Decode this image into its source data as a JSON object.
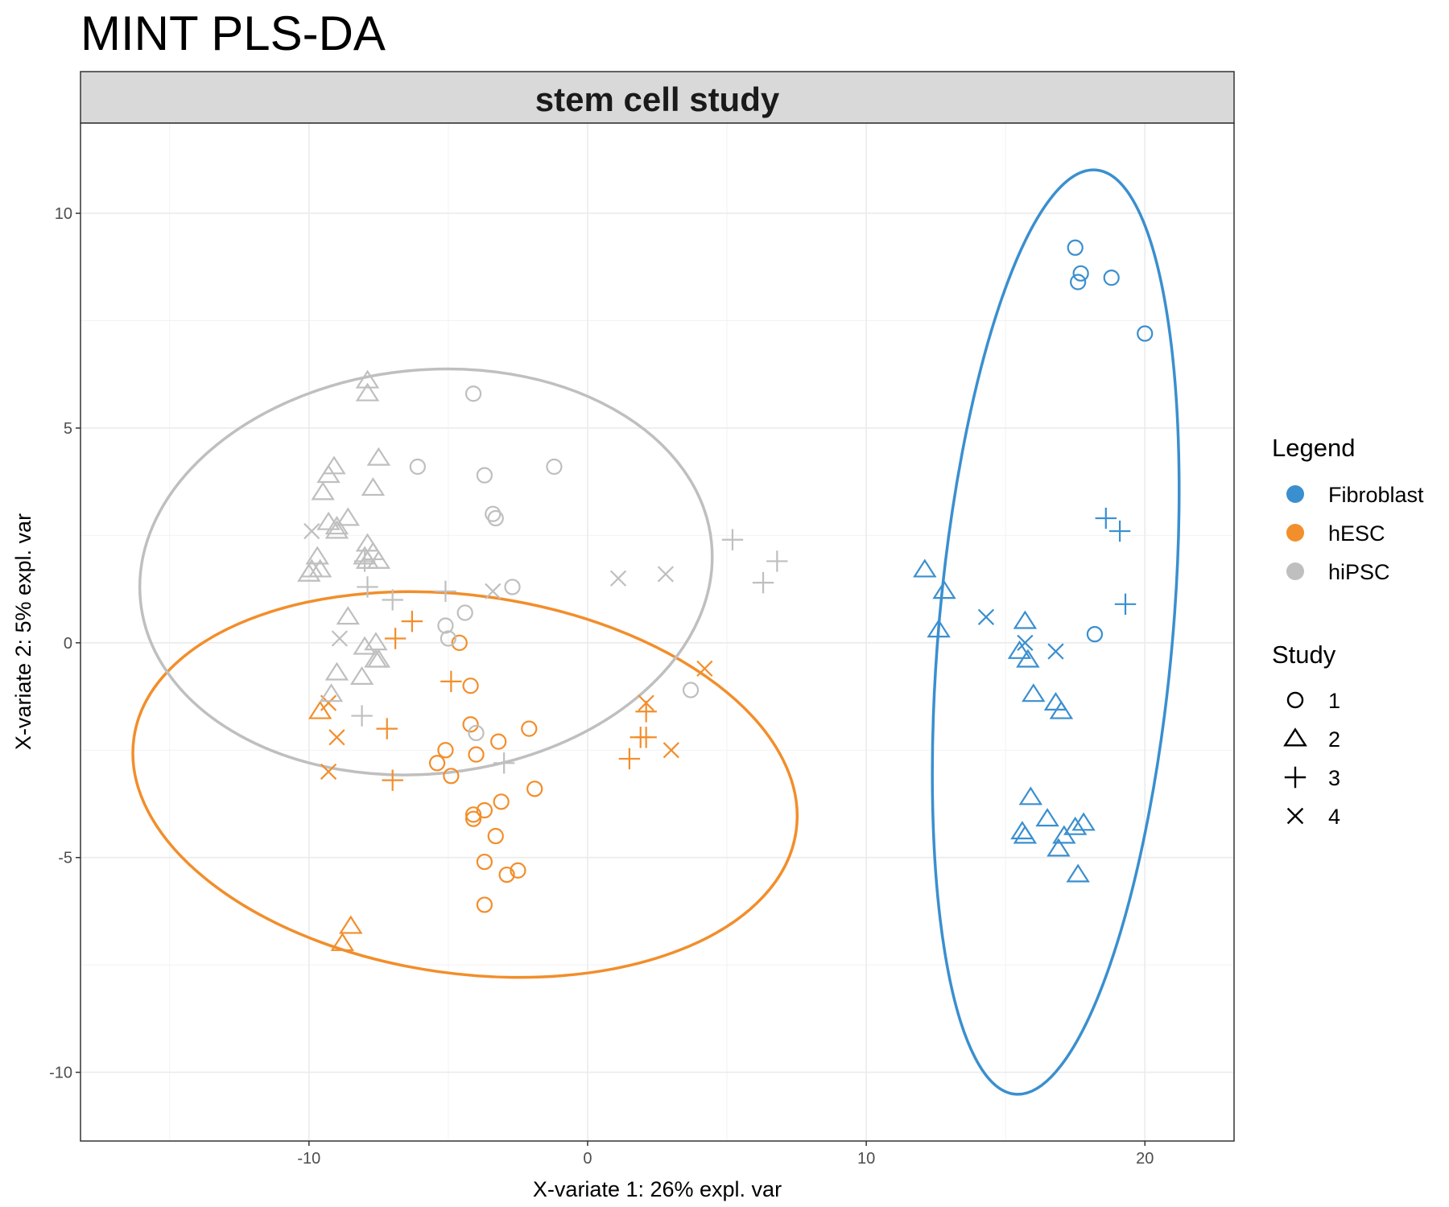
{
  "chart_data": {
    "type": "scatter",
    "title": "MINT PLS-DA",
    "facet_label": "stem cell study",
    "xlabel": "X-variate 1: 26% expl. var",
    "ylabel": "X-variate 2: 5% expl. var",
    "xlim": [
      -18.2,
      23.2
    ],
    "ylim": [
      -11.6,
      12.1
    ],
    "x_ticks": [
      -10,
      0,
      10,
      20
    ],
    "y_ticks": [
      -10,
      -5,
      0,
      5,
      10
    ],
    "x_tick_labels": [
      "-10",
      "0",
      "10",
      "20"
    ],
    "y_tick_labels": [
      "-10",
      "-5",
      "0",
      "5",
      "10"
    ],
    "grid": true,
    "legend_position": "right",
    "colors": {
      "Fibroblast": "#3a8fcf",
      "hESC": "#f28e2b",
      "hiPSC": "#bfbfbf"
    },
    "legend": {
      "color_title": "Legend",
      "color_entries": [
        "Fibroblast",
        "hESC",
        "hiPSC"
      ],
      "shape_title": "Study",
      "shape_entries": [
        {
          "label": "1",
          "shape": "circle"
        },
        {
          "label": "2",
          "shape": "triangle"
        },
        {
          "label": "3",
          "shape": "plus"
        },
        {
          "label": "4",
          "shape": "cross"
        }
      ]
    },
    "ellipses": [
      {
        "group": "Fibroblast",
        "cx": 16.8,
        "cy": 0.25,
        "rx": 4.2,
        "ry": 10.8,
        "angle_deg": 5
      },
      {
        "group": "hESC",
        "cx": -4.4,
        "cy": -3.3,
        "rx": 12.0,
        "ry": 4.4,
        "angle_deg": 8
      },
      {
        "group": "hiPSC",
        "cx": -5.8,
        "cy": 1.65,
        "rx": 10.3,
        "ry": 4.7,
        "angle_deg": -6
      }
    ],
    "series": [
      {
        "group": "Fibroblast",
        "study": "1",
        "shape": "circle",
        "points": [
          [
            17.5,
            9.2
          ],
          [
            17.7,
            8.6
          ],
          [
            17.6,
            8.4
          ],
          [
            18.8,
            8.5
          ],
          [
            20.0,
            7.2
          ],
          [
            18.2,
            0.2
          ]
        ]
      },
      {
        "group": "Fibroblast",
        "study": "2",
        "shape": "triangle",
        "points": [
          [
            12.1,
            1.7
          ],
          [
            12.8,
            1.2
          ],
          [
            12.6,
            0.3
          ],
          [
            15.7,
            0.5
          ],
          [
            15.5,
            -0.2
          ],
          [
            15.8,
            -0.4
          ],
          [
            16.0,
            -1.2
          ],
          [
            16.8,
            -1.4
          ],
          [
            17.0,
            -1.6
          ],
          [
            15.9,
            -3.6
          ],
          [
            16.5,
            -4.1
          ],
          [
            17.8,
            -4.2
          ],
          [
            17.5,
            -4.3
          ],
          [
            15.6,
            -4.4
          ],
          [
            15.7,
            -4.5
          ],
          [
            17.1,
            -4.5
          ],
          [
            16.9,
            -4.8
          ],
          [
            17.6,
            -5.4
          ]
        ]
      },
      {
        "group": "Fibroblast",
        "study": "3",
        "shape": "plus",
        "points": [
          [
            18.6,
            2.9
          ],
          [
            19.1,
            2.6
          ],
          [
            19.3,
            0.9
          ]
        ]
      },
      {
        "group": "Fibroblast",
        "study": "4",
        "shape": "cross",
        "points": [
          [
            14.3,
            0.6
          ],
          [
            15.7,
            0.0
          ],
          [
            16.8,
            -0.2
          ]
        ]
      },
      {
        "group": "hESC",
        "study": "1",
        "shape": "circle",
        "points": [
          [
            -4.6,
            0.0
          ],
          [
            -4.2,
            -1.0
          ],
          [
            -4.2,
            -1.9
          ],
          [
            -3.2,
            -2.3
          ],
          [
            -2.1,
            -2.0
          ],
          [
            -5.1,
            -2.5
          ],
          [
            -4.0,
            -2.6
          ],
          [
            -5.4,
            -2.8
          ],
          [
            -4.9,
            -3.1
          ],
          [
            -1.9,
            -3.4
          ],
          [
            -3.1,
            -3.7
          ],
          [
            -4.1,
            -4.0
          ],
          [
            -4.1,
            -4.1
          ],
          [
            -3.7,
            -3.9
          ],
          [
            -3.3,
            -4.5
          ],
          [
            -3.7,
            -5.1
          ],
          [
            -2.9,
            -5.4
          ],
          [
            -2.5,
            -5.3
          ],
          [
            -3.7,
            -6.1
          ]
        ]
      },
      {
        "group": "hESC",
        "study": "2",
        "shape": "triangle",
        "points": [
          [
            -9.6,
            -1.6
          ],
          [
            -8.5,
            -6.6
          ],
          [
            -8.8,
            -7.0
          ]
        ]
      },
      {
        "group": "hESC",
        "study": "3",
        "shape": "plus",
        "points": [
          [
            -6.3,
            0.5
          ],
          [
            -6.9,
            0.1
          ],
          [
            -4.9,
            -0.9
          ],
          [
            -7.2,
            -2.0
          ],
          [
            -7.0,
            -3.2
          ],
          [
            2.1,
            -1.6
          ],
          [
            1.9,
            -2.2
          ],
          [
            2.1,
            -2.2
          ],
          [
            1.5,
            -2.7
          ]
        ]
      },
      {
        "group": "hESC",
        "study": "4",
        "shape": "cross",
        "points": [
          [
            4.2,
            -0.6
          ],
          [
            2.1,
            -1.4
          ],
          [
            -9.3,
            -1.4
          ],
          [
            -9.0,
            -2.2
          ],
          [
            3.0,
            -2.5
          ],
          [
            -9.3,
            -3.0
          ]
        ]
      },
      {
        "group": "hiPSC",
        "study": "1",
        "shape": "circle",
        "points": [
          [
            -4.1,
            5.8
          ],
          [
            -6.1,
            4.1
          ],
          [
            -1.2,
            4.1
          ],
          [
            -3.7,
            3.9
          ],
          [
            -3.4,
            3.0
          ],
          [
            -3.3,
            2.9
          ],
          [
            -2.7,
            1.3
          ],
          [
            -4.4,
            0.7
          ],
          [
            -5.1,
            0.4
          ],
          [
            -5.0,
            0.1
          ],
          [
            3.7,
            -1.1
          ],
          [
            -4.0,
            -2.1
          ]
        ]
      },
      {
        "group": "hiPSC",
        "study": "2",
        "shape": "triangle",
        "points": [
          [
            -7.9,
            6.1
          ],
          [
            -7.9,
            5.8
          ],
          [
            -9.1,
            4.1
          ],
          [
            -9.3,
            3.9
          ],
          [
            -7.5,
            4.3
          ],
          [
            -7.7,
            3.6
          ],
          [
            -9.5,
            3.5
          ],
          [
            -9.3,
            2.8
          ],
          [
            -9.0,
            2.6
          ],
          [
            -8.6,
            2.9
          ],
          [
            -9.0,
            2.7
          ],
          [
            -7.9,
            2.3
          ],
          [
            -8.0,
            2.0
          ],
          [
            -7.7,
            2.1
          ],
          [
            -7.9,
            1.9
          ],
          [
            -7.5,
            1.9
          ],
          [
            -9.7,
            2.0
          ],
          [
            -9.6,
            1.7
          ],
          [
            -9.9,
            1.7
          ],
          [
            -10.0,
            1.6
          ],
          [
            -8.6,
            0.6
          ],
          [
            -7.6,
            0.0
          ],
          [
            -8.0,
            -0.1
          ],
          [
            -7.5,
            -0.4
          ],
          [
            -9.0,
            -0.7
          ],
          [
            -8.1,
            -0.8
          ],
          [
            -7.6,
            -0.4
          ],
          [
            -9.2,
            -1.2
          ]
        ]
      },
      {
        "group": "hiPSC",
        "study": "3",
        "shape": "plus",
        "points": [
          [
            5.2,
            2.4
          ],
          [
            6.8,
            1.9
          ],
          [
            6.3,
            1.4
          ],
          [
            -8.0,
            1.9
          ],
          [
            -7.9,
            1.3
          ],
          [
            -7.0,
            1.0
          ],
          [
            -5.1,
            1.2
          ],
          [
            -3.0,
            -2.8
          ],
          [
            -8.1,
            -1.7
          ]
        ]
      },
      {
        "group": "hiPSC",
        "study": "4",
        "shape": "cross",
        "points": [
          [
            -9.9,
            2.6
          ],
          [
            1.1,
            1.5
          ],
          [
            2.8,
            1.6
          ],
          [
            -3.4,
            1.2
          ],
          [
            -8.9,
            0.1
          ]
        ]
      }
    ]
  }
}
